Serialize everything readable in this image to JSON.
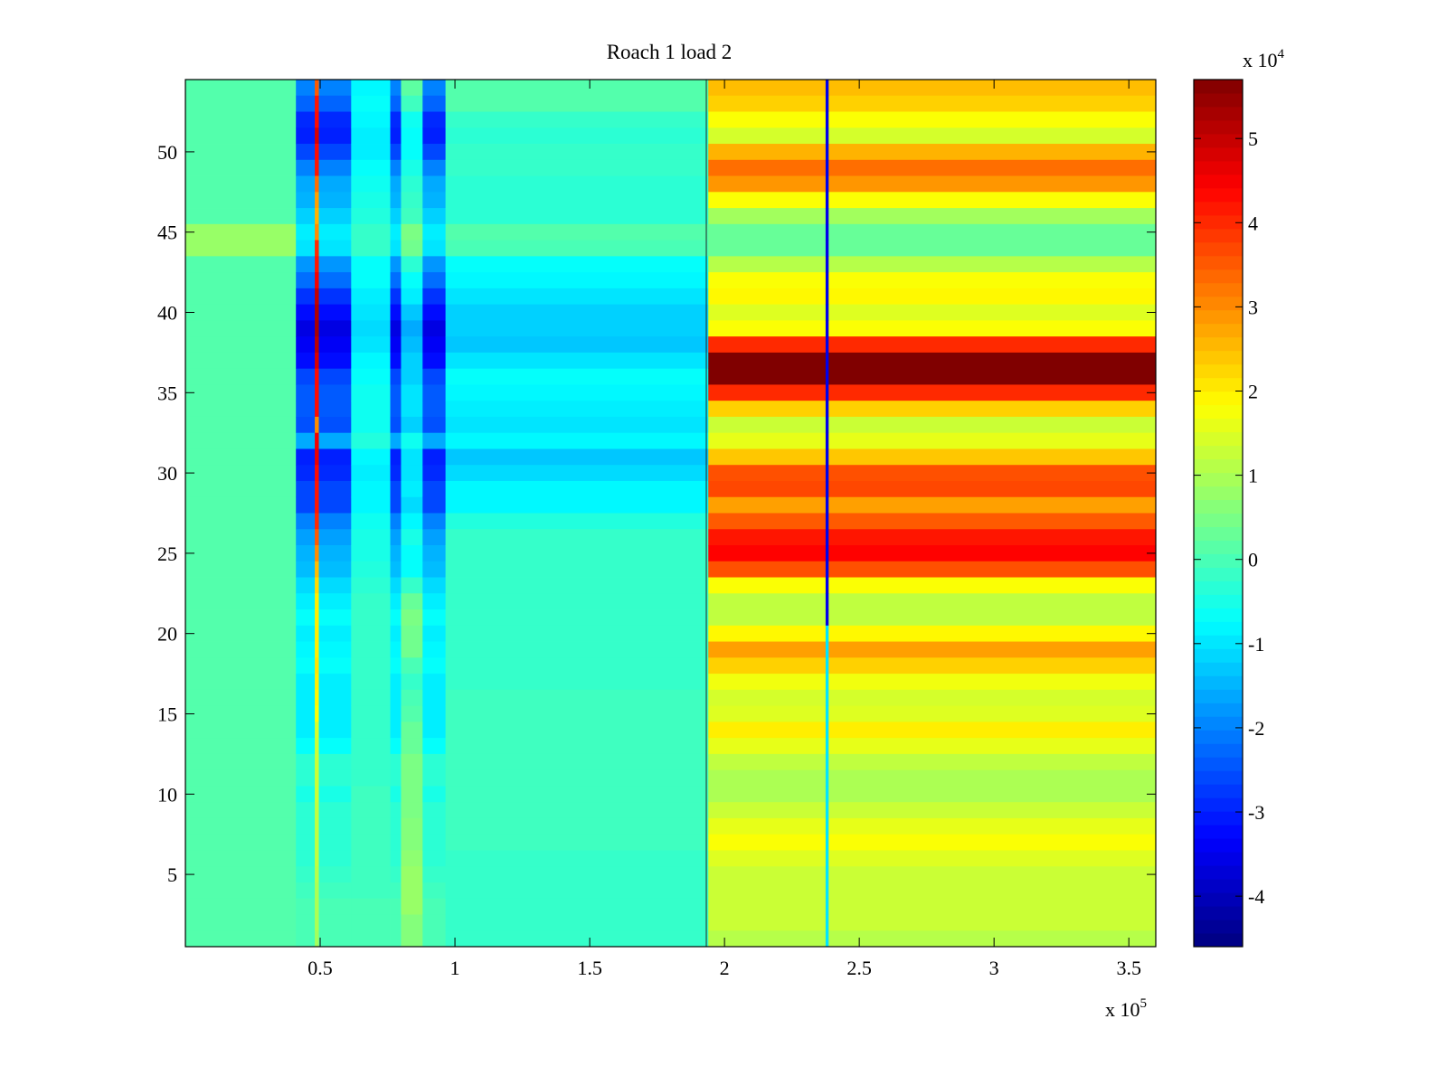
{
  "chart_data": {
    "type": "heatmap",
    "title": "Roach 1 load 2",
    "xlabel": "",
    "ylabel": "",
    "x_multiplier_label": "x 10",
    "x_multiplier_exp": "5",
    "xlim": [
      0,
      3.6
    ],
    "ylim": [
      0.5,
      54.5
    ],
    "xticks": [
      0.5,
      1,
      1.5,
      2,
      2.5,
      3,
      3.5
    ],
    "xtick_labels": [
      "0.5",
      "1",
      "1.5",
      "2",
      "2.5",
      "3",
      "3.5"
    ],
    "yticks": [
      5,
      10,
      15,
      20,
      25,
      30,
      35,
      40,
      45,
      50
    ],
    "ytick_labels": [
      "5",
      "10",
      "15",
      "20",
      "25",
      "30",
      "35",
      "40",
      "45",
      "50"
    ],
    "colormap": "jet",
    "clim": [
      -4.6,
      5.7
    ],
    "colorbar": {
      "multiplier_label": "x 10",
      "multiplier_exp": "4",
      "ticks": [
        -4,
        -3,
        -2,
        -1,
        0,
        1,
        2,
        3,
        4,
        5
      ],
      "tick_labels": [
        "-4",
        "-3",
        "-2",
        "-1",
        "0",
        "1",
        "2",
        "3",
        "4",
        "5"
      ]
    },
    "rows": 54,
    "row_order": "top-to-bottom (y=54 first)",
    "columns": [
      {
        "x0": 0,
        "x1": 0.41,
        "series": "A"
      },
      {
        "x0": 0.41,
        "x1": 0.48,
        "series": "blue"
      },
      {
        "x0": 0.48,
        "x1": 0.495,
        "series": "stripe"
      },
      {
        "x0": 0.495,
        "x1": 0.615,
        "series": "blue"
      },
      {
        "x0": 0.615,
        "x1": 0.76,
        "series": "E"
      },
      {
        "x0": 0.76,
        "x1": 0.8,
        "series": "blue"
      },
      {
        "x0": 0.8,
        "x1": 0.88,
        "series": "G"
      },
      {
        "x0": 0.88,
        "x1": 0.965,
        "series": "blue"
      },
      {
        "x0": 0.965,
        "x1": 1.94,
        "series": "I"
      },
      {
        "x0": 1.94,
        "x1": 3.6,
        "series": "J"
      },
      {
        "x0": 2.375,
        "x1": 2.385,
        "series": "marker"
      }
    ],
    "series": {
      "A": [
        0.1,
        0.1,
        0.1,
        0.1,
        0.1,
        0.1,
        0.1,
        0.1,
        0.1,
        0.8,
        0.8,
        0.1,
        0.1,
        0.1,
        0.1,
        0.1,
        0.1,
        0.1,
        0.1,
        0.1,
        0.1,
        0.1,
        0.1,
        0.1,
        0.1,
        0.1,
        0.1,
        0.1,
        0.1,
        0.1,
        0.1,
        0.1,
        0.1,
        0.1,
        0.1,
        0.1,
        0.1,
        0.1,
        0.1,
        0.1,
        0.1,
        0.1,
        0.1,
        0.1,
        0.1,
        0.1,
        0.1,
        0.1,
        0.1,
        0.1,
        0.1,
        0.1,
        0.1,
        0.1
      ],
      "blue": [
        -2.0,
        -2.3,
        -2.9,
        -3.0,
        -2.6,
        -2.0,
        -1.6,
        -1.5,
        -1.2,
        -0.9,
        -1.0,
        -1.8,
        -2.2,
        -2.8,
        -3.2,
        -3.6,
        -3.4,
        -3.2,
        -2.6,
        -2.4,
        -2.4,
        -2.5,
        -1.6,
        -3.0,
        -2.9,
        -2.6,
        -2.6,
        -2.0,
        -1.7,
        -1.5,
        -1.4,
        -1.1,
        -0.9,
        -0.7,
        -0.9,
        -0.8,
        -0.7,
        -0.9,
        -0.9,
        -0.9,
        -0.9,
        -0.7,
        -0.3,
        -0.3,
        -0.5,
        -0.3,
        -0.3,
        -0.3,
        -0.3,
        -0.2,
        -0.1,
        0.0,
        0.0,
        0.0
      ],
      "stripe": [
        3.5,
        4.2,
        4.3,
        4.8,
        4.3,
        4.2,
        3.3,
        2.8,
        2.6,
        3.0,
        4.0,
        4.2,
        4.5,
        5.0,
        5.2,
        5.3,
        5.1,
        4.8,
        4.3,
        4.3,
        4.3,
        3.0,
        4.5,
        4.6,
        4.3,
        4.2,
        4.2,
        4.0,
        3.5,
        3.0,
        2.5,
        2.2,
        2.0,
        2.0,
        2.0,
        2.0,
        2.1,
        2.0,
        1.9,
        1.8,
        1.4,
        1.3,
        1.3,
        1.3,
        1.3,
        1.2,
        1.2,
        1.2,
        1.2,
        1.1,
        1.0,
        1.0,
        1.0,
        0.9
      ],
      "E": [
        -0.8,
        -0.7,
        -0.8,
        -0.9,
        -0.9,
        -0.7,
        -0.6,
        -0.5,
        -0.4,
        -0.2,
        -0.2,
        -0.7,
        -0.7,
        -0.9,
        -1.0,
        -1.1,
        -1.0,
        -0.8,
        -0.7,
        -0.6,
        -0.6,
        -0.6,
        -0.4,
        -0.8,
        -0.9,
        -0.8,
        -0.8,
        -0.6,
        -0.5,
        -0.5,
        -0.4,
        -0.3,
        -0.2,
        -0.2,
        -0.2,
        -0.2,
        -0.2,
        -0.2,
        -0.2,
        -0.2,
        -0.2,
        -0.2,
        -0.2,
        -0.2,
        -0.1,
        -0.1,
        -0.1,
        -0.1,
        -0.1,
        -0.1,
        -0.1,
        0.0,
        0.0,
        0.0
      ],
      "G": [
        0.2,
        -0.1,
        -0.6,
        -0.7,
        -0.7,
        -0.5,
        -0.3,
        -0.2,
        -0.1,
        0.5,
        0.4,
        -0.3,
        -0.7,
        -0.9,
        -1.3,
        -1.6,
        -1.4,
        -1.2,
        -1.2,
        -1.0,
        -1.0,
        -1.2,
        -0.6,
        -1.0,
        -1.0,
        -0.9,
        -1.1,
        -0.8,
        -0.5,
        -0.7,
        -0.7,
        -0.2,
        0.3,
        0.5,
        0.4,
        0.4,
        0.0,
        -0.2,
        0.0,
        0.1,
        0.3,
        0.3,
        0.5,
        0.5,
        0.5,
        0.5,
        0.6,
        0.6,
        0.7,
        0.8,
        0.8,
        0.8,
        0.6,
        0.6
      ],
      "I": [
        0.1,
        0.1,
        -0.2,
        -0.3,
        -0.2,
        -0.2,
        -0.3,
        -0.3,
        -0.3,
        0.1,
        0.0,
        -0.7,
        -0.8,
        -1.0,
        -1.2,
        -1.2,
        -1.3,
        -1.0,
        -0.7,
        -0.8,
        -0.9,
        -1.0,
        -0.8,
        -1.3,
        -1.1,
        -0.8,
        -0.8,
        -0.4,
        -0.2,
        -0.2,
        -0.2,
        -0.2,
        -0.2,
        -0.2,
        -0.2,
        -0.2,
        -0.2,
        -0.2,
        -0.1,
        -0.1,
        -0.1,
        -0.1,
        -0.1,
        -0.1,
        -0.1,
        -0.1,
        -0.1,
        -0.1,
        -0.2,
        -0.2,
        -0.2,
        -0.2,
        -0.2,
        -0.2
      ],
      "J": [
        2.5,
        2.3,
        1.8,
        1.4,
        2.6,
        3.3,
        2.9,
        1.8,
        0.9,
        0.3,
        0.3,
        1.1,
        1.8,
        1.9,
        1.5,
        1.8,
        4.0,
        5.7,
        5.7,
        4.0,
        2.3,
        1.3,
        1.6,
        2.4,
        3.6,
        3.7,
        2.8,
        3.5,
        4.2,
        4.4,
        3.6,
        1.8,
        1.2,
        1.2,
        1.9,
        2.8,
        2.3,
        1.7,
        1.4,
        1.5,
        2.0,
        1.6,
        1.2,
        1.0,
        1.0,
        1.3,
        1.6,
        1.8,
        1.5,
        1.3,
        1.3,
        1.3,
        1.3,
        1.1
      ],
      "marker": [
        -3.5,
        -3.5,
        -3.5,
        -3.5,
        -3.5,
        -3.5,
        -3.5,
        -3.5,
        -3.5,
        -3.5,
        -3.5,
        -3.5,
        -3.5,
        -3.5,
        -3.5,
        -3.5,
        -3.5,
        -3.5,
        -3.5,
        -3.5,
        -3.5,
        -3.5,
        -3.5,
        -3.5,
        -3.5,
        -3.5,
        -3.5,
        -3.5,
        -3.5,
        -3.5,
        -3.5,
        -3.5,
        -3.5,
        -3.5,
        -1.0,
        -1.0,
        -1.0,
        -1.0,
        -1.0,
        -1.0,
        -1.0,
        -1.0,
        -1.0,
        -1.0,
        -1.0,
        -1.0,
        -1.0,
        -1.0,
        -1.0,
        -1.0,
        -1.0,
        -1.0,
        -1.0,
        -1.0
      ]
    }
  }
}
